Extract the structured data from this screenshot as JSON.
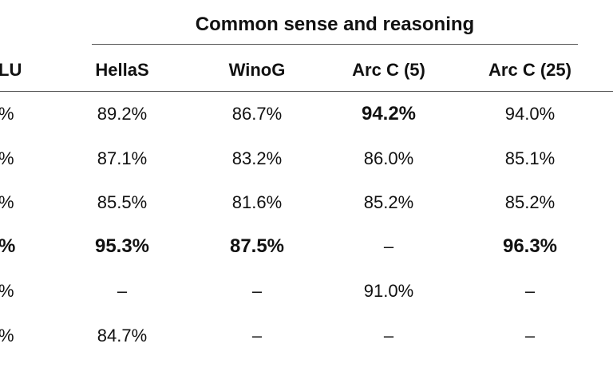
{
  "group_header": "Common sense and reasoning",
  "columns": [
    "LU",
    "HellaS",
    "WinoG",
    "Arc C (5)",
    "Arc C (25)"
  ],
  "rows": [
    {
      "cells": [
        "%",
        "89.2%",
        "86.7%",
        "94.2%",
        "94.0%"
      ],
      "bold": [
        false,
        false,
        false,
        true,
        false
      ]
    },
    {
      "cells": [
        "%",
        "87.1%",
        "83.2%",
        "86.0%",
        "85.1%"
      ],
      "bold": [
        false,
        false,
        false,
        false,
        false
      ]
    },
    {
      "cells": [
        "%",
        "85.5%",
        "81.6%",
        "85.2%",
        "85.2%"
      ],
      "bold": [
        false,
        false,
        false,
        false,
        false
      ]
    },
    {
      "cells": [
        "%",
        "95.3%",
        "87.5%",
        "–",
        "96.3%"
      ],
      "bold": [
        true,
        true,
        true,
        false,
        true
      ]
    },
    {
      "cells": [
        "%",
        "–",
        "–",
        "91.0%",
        "–"
      ],
      "bold": [
        false,
        false,
        false,
        false,
        false
      ]
    },
    {
      "cells": [
        "%",
        "84.7%",
        "–",
        "–",
        "–"
      ],
      "bold": [
        false,
        false,
        false,
        false,
        false
      ]
    }
  ]
}
